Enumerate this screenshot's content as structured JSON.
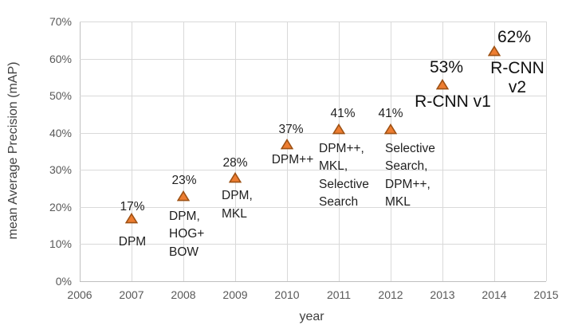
{
  "chart_data": {
    "type": "scatter",
    "title": "",
    "xlabel": "year",
    "ylabel": "mean Average Precision (mAP)",
    "xlim": [
      2006,
      2015
    ],
    "ylim": [
      0,
      70
    ],
    "grid": true,
    "legend": "none",
    "x_ticks": [
      "2006",
      "2007",
      "2008",
      "2009",
      "2010",
      "2011",
      "2012",
      "2013",
      "2014",
      "2015"
    ],
    "x_tick_values": [
      2006,
      2007,
      2008,
      2009,
      2010,
      2011,
      2012,
      2013,
      2014,
      2015
    ],
    "y_tick_labels": [
      "0%",
      "10%",
      "20%",
      "30%",
      "40%",
      "50%",
      "60%",
      "70%"
    ],
    "y_tick_values": [
      0,
      10,
      20,
      30,
      40,
      50,
      60,
      70
    ],
    "marker": {
      "shape": "triangle-up",
      "fill": "#ED7D31",
      "stroke": "#9E5114"
    },
    "points": [
      {
        "year": 2007,
        "value": 17,
        "value_label": "17%",
        "methods": [
          "DPM"
        ],
        "emphasis": false,
        "methods_align": "center",
        "value_label_offset": [
          1,
          -14
        ],
        "methods_offset": [
          1,
          30
        ]
      },
      {
        "year": 2008,
        "value": 23,
        "value_label": "23%",
        "methods": [
          "DPM,",
          "HOG+",
          "BOW"
        ],
        "emphasis": false,
        "methods_align": "left",
        "value_label_offset": [
          1,
          -19
        ],
        "methods_offset": [
          -18,
          26
        ]
      },
      {
        "year": 2009,
        "value": 28,
        "value_label": "28%",
        "methods": [
          "DPM,",
          "MKL"
        ],
        "emphasis": false,
        "methods_align": "left",
        "value_label_offset": [
          0,
          -18
        ],
        "methods_offset": [
          -17,
          24
        ]
      },
      {
        "year": 2010,
        "value": 37,
        "value_label": "37%",
        "methods": [
          "DPM++"
        ],
        "emphasis": false,
        "methods_align": "center",
        "value_label_offset": [
          5,
          -18
        ],
        "methods_offset": [
          7,
          21
        ]
      },
      {
        "year": 2011,
        "value": 41,
        "value_label": "41%",
        "methods": [
          "DPM++,",
          "MKL,",
          "Selective",
          "Search"
        ],
        "emphasis": false,
        "methods_align": "left",
        "value_label_offset": [
          5,
          -19
        ],
        "methods_offset": [
          -25,
          25
        ]
      },
      {
        "year": 2012,
        "value": 41,
        "value_label": "41%",
        "methods": [
          "Selective",
          "Search,",
          "DPM++,",
          "MKL"
        ],
        "emphasis": false,
        "methods_align": "left",
        "value_label_offset": [
          0,
          -19
        ],
        "methods_offset": [
          -7,
          25
        ]
      },
      {
        "year": 2013,
        "value": 53,
        "value_label": "53%",
        "methods": [
          "R-CNN v1"
        ],
        "emphasis": true,
        "methods_align": "center",
        "value_label_offset": [
          5,
          -21
        ],
        "methods_offset": [
          13,
          22
        ]
      },
      {
        "year": 2014,
        "value": 62,
        "value_label": "62%",
        "methods": [
          "R-CNN v2"
        ],
        "emphasis": true,
        "methods_align": "center",
        "value_label_offset": [
          25,
          -17
        ],
        "methods_offset": [
          29,
          22
        ]
      }
    ]
  },
  "colors": {
    "background": "#ffffff",
    "grid": "#d9d9d9",
    "axis": "#bfbfbf",
    "tick_text": "#595959",
    "label_text": "#1f1f1f",
    "title_text": "#404040",
    "marker_fill": "#ED7D31",
    "marker_stroke": "#9E5114"
  }
}
